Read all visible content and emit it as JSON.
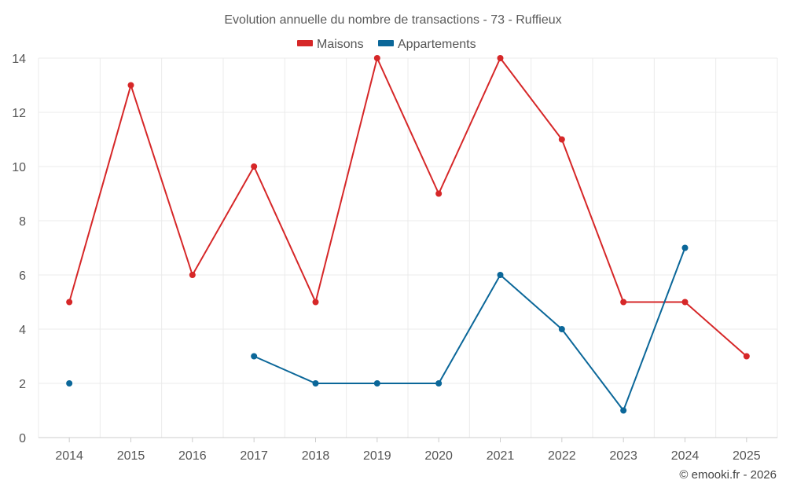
{
  "chart_data": {
    "type": "line",
    "title": "Evolution annuelle du nombre de transactions - 73 - Ruffieux",
    "xlabel": "",
    "ylabel": "",
    "categories": [
      "2014",
      "2015",
      "2016",
      "2017",
      "2018",
      "2019",
      "2020",
      "2021",
      "2022",
      "2023",
      "2024",
      "2025"
    ],
    "ylim": [
      0,
      14
    ],
    "yticks": [
      0,
      2,
      4,
      6,
      8,
      10,
      12,
      14
    ],
    "grid": true,
    "legend_position": "top-center",
    "series": [
      {
        "name": "Maisons",
        "color": "#d62728",
        "values": [
          5,
          13,
          6,
          10,
          5,
          14,
          9,
          14,
          11,
          5,
          5,
          3
        ]
      },
      {
        "name": "Appartements",
        "color": "#0b6799",
        "values": [
          2,
          null,
          null,
          3,
          2,
          2,
          2,
          6,
          4,
          1,
          7,
          null
        ]
      }
    ]
  },
  "credit": "© emooki.fr - 2026",
  "colors": {
    "grid": "#ebebeb",
    "axis": "#cccccc",
    "text": "#555555"
  }
}
